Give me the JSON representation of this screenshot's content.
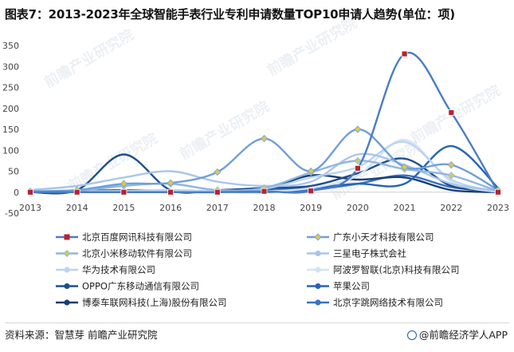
{
  "title": "图表7：2013-2023年全球智能手表行业专利申请数量TOP10申请人趋势(单位：项)",
  "source": "资料来源：智慧芽 前瞻产业研究院",
  "brand": "@前瞻经济学人APP",
  "watermark": "前瞻产业研究院",
  "chart_data": {
    "type": "line",
    "title": "图表7：2013-2023年全球智能手表行业专利申请数量TOP10申请人趋势(单位：项)",
    "xlabel": "",
    "ylabel": "",
    "x": [
      "2013",
      "2014",
      "2015",
      "2016",
      "2017",
      "2018",
      "2019",
      "2020",
      "2021",
      "2022",
      "2023"
    ],
    "ylim": [
      -50,
      350
    ],
    "yticks": [
      -50,
      0,
      50,
      100,
      150,
      200,
      250,
      300,
      350
    ],
    "smooth": true,
    "legend_position": "bottom",
    "series": [
      {
        "name": "北京百度网讯科技有限公司",
        "color": "#4a7cc4",
        "marker": "square",
        "marker_color": "#b8232f",
        "values": [
          0,
          0,
          0,
          0,
          0,
          2,
          3,
          57,
          330,
          190,
          0
        ]
      },
      {
        "name": "广东小天才科技有限公司",
        "color": "#6f9fd8",
        "marker": "diamond",
        "marker_color": "#d8c85a",
        "values": [
          2,
          5,
          20,
          22,
          48,
          128,
          50,
          150,
          60,
          65,
          5
        ]
      },
      {
        "name": "北京小米移动软件有限公司",
        "color": "#8fb6e2",
        "marker": "diamond",
        "marker_color": "#c9c96a",
        "values": [
          0,
          3,
          15,
          20,
          5,
          10,
          47,
          75,
          55,
          40,
          2
        ]
      },
      {
        "name": "三星电子株式会社",
        "color": "#a8c6ea",
        "marker": "none",
        "values": [
          5,
          15,
          35,
          50,
          25,
          15,
          25,
          90,
          65,
          20,
          3
        ]
      },
      {
        "name": "华为技术有限公司",
        "color": "#bcd4ee",
        "marker": "none",
        "values": [
          0,
          2,
          3,
          5,
          3,
          8,
          35,
          60,
          120,
          30,
          2
        ]
      },
      {
        "name": "阿波罗智联(北京)科技有限公司",
        "color": "#d3e3f5",
        "marker": "none",
        "values": [
          0,
          0,
          0,
          0,
          0,
          2,
          10,
          40,
          125,
          25,
          0
        ]
      },
      {
        "name": "OPPO广东移动通信有限公司",
        "color": "#1e4f8f",
        "marker": "none",
        "values": [
          0,
          5,
          90,
          5,
          5,
          10,
          15,
          45,
          80,
          15,
          3
        ]
      },
      {
        "name": "苹果公司",
        "color": "#2864b4",
        "marker": "none",
        "values": [
          1,
          3,
          5,
          3,
          2,
          5,
          10,
          20,
          20,
          110,
          10
        ]
      },
      {
        "name": "博泰车联网科技(上海)股份有限公司",
        "color": "#173f73",
        "marker": "none",
        "values": [
          0,
          0,
          0,
          0,
          0,
          5,
          40,
          30,
          35,
          5,
          0
        ]
      },
      {
        "name": "北京字跳网络技术有限公司",
        "color": "#3b72c0",
        "marker": "none",
        "values": [
          0,
          0,
          0,
          0,
          0,
          0,
          5,
          20,
          40,
          12,
          2
        ]
      }
    ]
  }
}
